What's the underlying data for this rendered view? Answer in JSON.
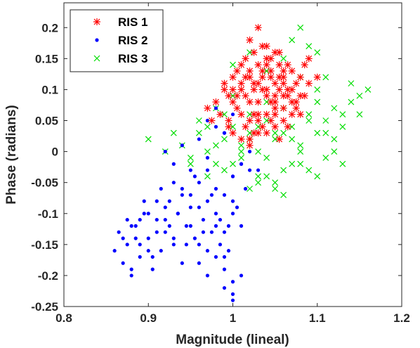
{
  "chart_data": {
    "type": "scatter",
    "xlabel": "Magnitude (lineal)",
    "ylabel": "Phase (radians)",
    "xlim": [
      0.8,
      1.2
    ],
    "ylim": [
      -0.25,
      0.24
    ],
    "xticks": [
      "0.8",
      "0.9",
      "1",
      "1.1",
      "1.2"
    ],
    "yticks": [
      "-0.25",
      "-0.2",
      "-0.15",
      "-0.1",
      "-0.05",
      "0",
      "0.05",
      "0.1",
      "0.15",
      "0.2"
    ],
    "grid": false,
    "legend_position": "top-left",
    "series": [
      {
        "name": "RIS 1",
        "marker": "asterisk",
        "color": "#ff0000",
        "x": [
          0.98,
          0.985,
          0.99,
          0.995,
          1.0,
          1.0,
          1.005,
          1.01,
          1.01,
          1.015,
          1.02,
          1.02,
          1.02,
          1.025,
          1.03,
          1.03,
          1.03,
          1.035,
          1.04,
          1.04,
          1.04,
          1.045,
          1.05,
          1.05,
          1.05,
          1.055,
          1.06,
          1.06,
          1.06,
          1.065,
          1.07,
          1.07,
          1.075,
          1.08,
          1.08,
          1.085,
          1.09,
          0.97,
          0.975,
          0.995,
          1.005,
          1.015,
          1.025,
          1.035,
          1.045,
          1.055,
          1.065,
          1.0,
          1.01,
          1.02,
          1.03,
          1.04,
          1.05,
          1.06,
          1.07,
          1.08,
          1.09,
          1.1,
          1.025,
          1.035,
          1.045,
          1.055,
          0.99,
          1.0,
          1.01,
          1.02,
          1.03,
          1.04,
          1.05,
          1.06,
          1.07,
          1.015,
          1.025,
          1.035,
          1.045,
          1.055,
          1.065,
          1.075,
          1.02,
          1.03,
          1.04,
          1.05,
          1.01,
          1.02,
          1.03,
          1.04,
          1.05,
          1.06,
          0.995,
          1.005,
          1.015,
          1.025,
          1.035,
          1.045,
          1.055,
          1.065,
          1.075,
          1.085
        ],
        "y": [
          0.08,
          0.06,
          0.1,
          0.04,
          0.12,
          0.03,
          0.07,
          0.11,
          0.02,
          0.09,
          0.13,
          0.05,
          0.01,
          0.1,
          0.14,
          0.08,
          0.03,
          0.12,
          0.15,
          0.1,
          0.06,
          0.13,
          0.11,
          0.07,
          0.04,
          0.14,
          0.12,
          0.09,
          0.05,
          0.1,
          0.13,
          0.08,
          0.11,
          0.12,
          0.09,
          0.14,
          0.11,
          0.07,
          0.05,
          0.09,
          0.13,
          0.15,
          0.16,
          0.17,
          0.15,
          0.16,
          0.14,
          0.1,
          0.14,
          0.18,
          0.2,
          0.17,
          0.16,
          0.13,
          0.1,
          0.06,
          0.15,
          0.12,
          0.06,
          0.04,
          0.05,
          0.02,
          0.11,
          0.08,
          0.06,
          0.08,
          0.11,
          0.09,
          0.08,
          0.07,
          0.06,
          0.12,
          0.11,
          0.13,
          0.12,
          0.1,
          0.09,
          0.08,
          0.02,
          0.05,
          0.03,
          0.06,
          0.1,
          0.12,
          0.06,
          0.14,
          0.09,
          0.11,
          0.05,
          0.09,
          0.04,
          0.03,
          0.1,
          0.08,
          0.12,
          0.04,
          0.07,
          0.09
        ]
      },
      {
        "name": "RIS 2",
        "marker": "dot",
        "color": "#0000ff",
        "x": [
          0.86,
          0.865,
          0.87,
          0.875,
          0.88,
          0.885,
          0.89,
          0.895,
          0.9,
          0.905,
          0.91,
          0.915,
          0.92,
          0.925,
          0.93,
          0.935,
          0.94,
          0.945,
          0.95,
          0.955,
          0.96,
          0.965,
          0.97,
          0.975,
          0.98,
          0.985,
          0.99,
          0.995,
          1.0,
          1.005,
          1.01,
          1.015,
          1.02,
          0.87,
          0.88,
          0.89,
          0.9,
          0.91,
          0.92,
          0.93,
          0.94,
          0.95,
          0.96,
          0.97,
          0.98,
          0.99,
          1.0,
          0.875,
          0.885,
          0.895,
          0.905,
          0.915,
          0.925,
          0.935,
          0.945,
          0.955,
          0.965,
          0.975,
          0.985,
          0.995,
          0.88,
          0.89,
          0.9,
          0.91,
          0.92,
          0.93,
          0.94,
          0.95,
          0.96,
          0.97,
          0.98,
          0.99,
          1.0,
          1.01,
          0.92,
          0.93,
          0.94,
          0.95,
          0.96,
          0.97,
          0.98,
          0.99,
          1.0,
          1.01,
          1.02,
          1.03,
          0.96,
          0.97,
          0.98,
          0.99,
          1.0,
          1.01,
          0.97,
          0.98,
          0.99,
          1.0,
          0.99,
          1.0,
          1.0
        ],
        "y": [
          -0.16,
          -0.13,
          -0.18,
          -0.15,
          -0.2,
          -0.12,
          -0.17,
          -0.1,
          -0.14,
          -0.19,
          -0.11,
          -0.16,
          -0.13,
          -0.08,
          -0.15,
          -0.1,
          -0.06,
          -0.12,
          -0.09,
          -0.14,
          -0.05,
          -0.11,
          -0.08,
          -0.13,
          -0.1,
          -0.15,
          -0.07,
          -0.12,
          -0.04,
          -0.09,
          -0.02,
          -0.06,
          -0.03,
          -0.14,
          -0.19,
          -0.11,
          -0.16,
          -0.13,
          -0.09,
          -0.05,
          -0.18,
          -0.07,
          -0.15,
          -0.03,
          -0.12,
          -0.17,
          -0.08,
          -0.11,
          -0.14,
          -0.08,
          -0.17,
          -0.06,
          -0.12,
          -0.1,
          -0.15,
          -0.04,
          -0.13,
          -0.07,
          -0.11,
          -0.16,
          -0.12,
          -0.15,
          -0.1,
          -0.08,
          -0.11,
          -0.14,
          -0.07,
          -0.12,
          -0.09,
          -0.16,
          -0.06,
          -0.13,
          -0.1,
          -0.12,
          0.0,
          -0.02,
          0.01,
          -0.03,
          0.02,
          -0.01,
          0.04,
          0.03,
          -0.04,
          -0.02,
          0.0,
          -0.03,
          -0.18,
          -0.2,
          -0.17,
          -0.19,
          -0.21,
          -0.2,
          0.05,
          0.07,
          0.03,
          0.06,
          -0.22,
          -0.23,
          -0.24
        ]
      },
      {
        "name": "RIS 3",
        "marker": "x",
        "color": "#00dd00",
        "x": [
          0.9,
          0.92,
          0.94,
          0.95,
          0.96,
          0.97,
          0.98,
          0.99,
          1.0,
          1.01,
          1.02,
          1.03,
          1.04,
          1.05,
          1.06,
          1.07,
          1.08,
          1.09,
          1.1,
          1.11,
          1.12,
          1.13,
          1.14,
          1.15,
          1.16,
          0.93,
          0.95,
          0.97,
          0.99,
          1.01,
          1.03,
          1.05,
          1.07,
          1.09,
          1.11,
          1.13,
          1.15,
          0.96,
          0.98,
          1.0,
          1.02,
          1.04,
          1.06,
          1.08,
          1.1,
          1.12,
          1.14,
          0.97,
          0.99,
          1.01,
          1.03,
          1.05,
          1.07,
          1.09,
          1.11,
          1.13,
          0.98,
          1.0,
          1.02,
          1.04,
          1.06,
          1.08,
          1.1,
          1.12,
          1.0,
          1.02,
          1.04,
          1.06,
          1.08,
          1.1,
          1.07,
          1.08,
          1.09,
          1.1,
          1.11,
          1.02,
          1.03,
          1.04,
          1.05,
          1.06
        ],
        "y": [
          0.02,
          0.0,
          0.01,
          -0.01,
          0.03,
          0.0,
          -0.02,
          0.02,
          0.04,
          -0.01,
          0.03,
          0.0,
          0.05,
          0.02,
          -0.03,
          0.04,
          0.01,
          0.06,
          0.03,
          0.05,
          0.07,
          0.04,
          0.08,
          0.06,
          0.1,
          0.03,
          -0.02,
          0.04,
          -0.03,
          0.01,
          -0.04,
          0.03,
          -0.02,
          0.05,
          -0.01,
          0.06,
          0.09,
          0.05,
          0.01,
          -0.02,
          0.06,
          -0.01,
          0.07,
          0.0,
          0.08,
          0.02,
          0.11,
          -0.04,
          0.06,
          0.0,
          0.04,
          -0.05,
          0.02,
          -0.03,
          0.03,
          -0.02,
          0.07,
          0.09,
          0.02,
          0.08,
          0.03,
          -0.02,
          -0.04,
          0.0,
          0.14,
          0.16,
          0.13,
          0.15,
          0.12,
          0.1,
          0.18,
          0.2,
          0.17,
          0.16,
          0.12,
          -0.06,
          -0.05,
          -0.04,
          -0.06,
          -0.07
        ]
      }
    ]
  }
}
